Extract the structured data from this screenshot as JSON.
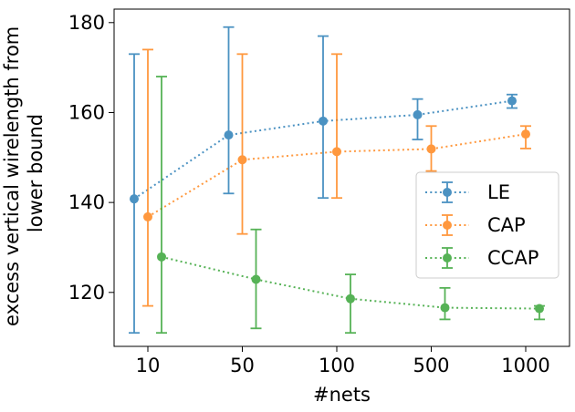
{
  "chart_data": {
    "type": "line",
    "title": "",
    "xlabel": "#nets",
    "ylabel_lines": [
      "excess vertical wirelength from",
      "lower bound"
    ],
    "categories": [
      "10",
      "50",
      "100",
      "500",
      "1000"
    ],
    "ylim": [
      108,
      183
    ],
    "yticks": [
      120,
      140,
      160,
      180
    ],
    "grid": false,
    "legend_position": "center-right",
    "series": [
      {
        "name": "LE",
        "color": "#1f77b4",
        "values": [
          140.8,
          155.0,
          158.1,
          159.5,
          162.6
        ],
        "err_low": [
          111,
          142,
          141,
          154,
          161
        ],
        "err_high": [
          173,
          179,
          177,
          163,
          164
        ]
      },
      {
        "name": "CAP",
        "color": "#ff7f0e",
        "values": [
          136.8,
          149.5,
          151.3,
          151.9,
          155.2
        ],
        "err_low": [
          117,
          133,
          141,
          147,
          152
        ],
        "err_high": [
          174,
          173,
          173,
          157,
          157
        ]
      },
      {
        "name": "CCAP",
        "color": "#2ca02c",
        "values": [
          127.9,
          122.9,
          118.6,
          116.6,
          116.4
        ],
        "err_low": [
          111,
          112,
          111,
          114,
          114
        ],
        "err_high": [
          168,
          134,
          124,
          121,
          117
        ]
      }
    ]
  }
}
